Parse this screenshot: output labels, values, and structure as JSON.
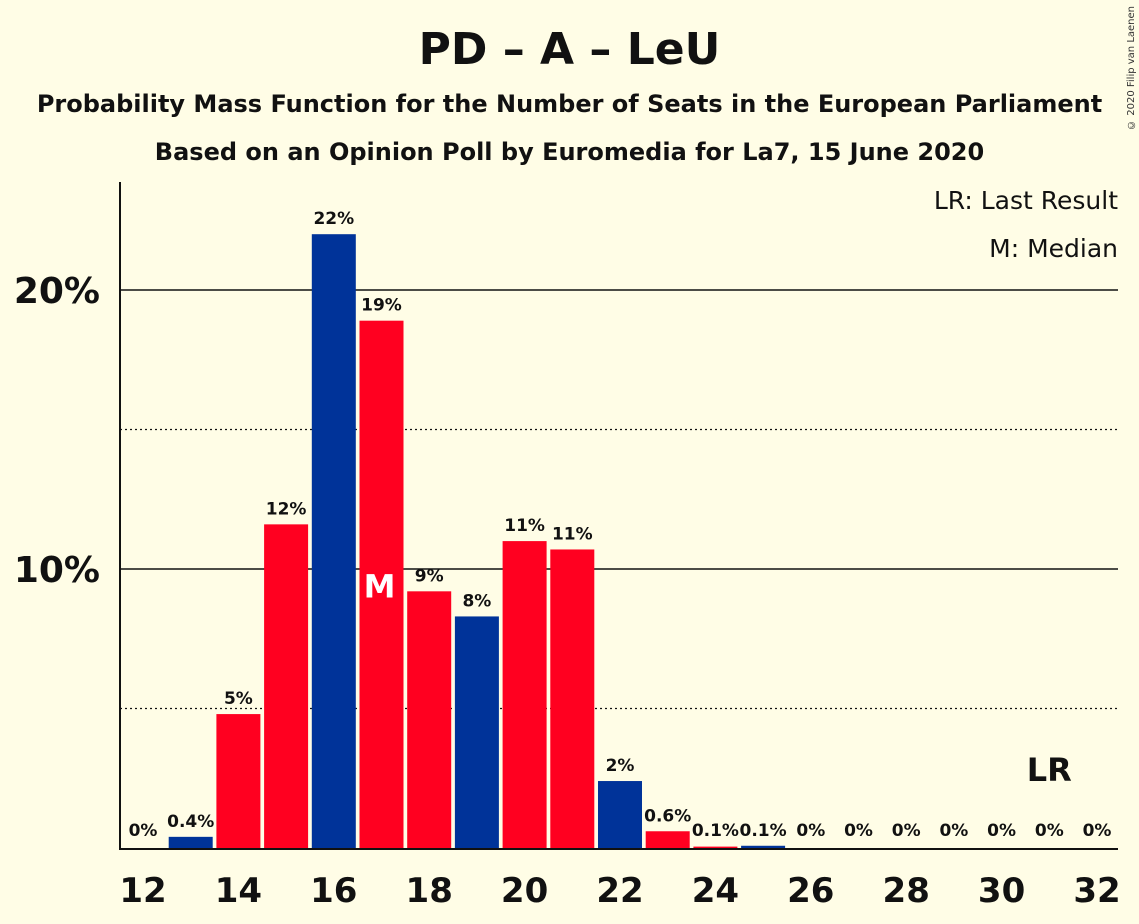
{
  "title": "PD – A – LeU",
  "subtitle": "Probability Mass Function for the Number of Seats in the European Parliament",
  "subtitle2": "Based on an Opinion Poll by Euromedia for La7, 15 June 2020",
  "copyright": "© 2020 Filip van Laenen",
  "legend": {
    "last_result": "LR: Last Result",
    "median": "M: Median"
  },
  "colors": {
    "red": "#ff0020",
    "blue": "#003399",
    "background": "#fffde6"
  },
  "chart_data": {
    "type": "bar",
    "x": [
      12,
      13,
      14,
      15,
      16,
      17,
      18,
      19,
      20,
      21,
      22,
      23,
      24,
      25,
      26,
      27,
      28,
      29,
      30,
      31,
      32
    ],
    "values": [
      0,
      0.4,
      4.8,
      11.6,
      22.0,
      18.9,
      9.2,
      8.3,
      11.0,
      10.7,
      2.4,
      0.6,
      0.05,
      0.08,
      0,
      0,
      0,
      0,
      0,
      0,
      0
    ],
    "labels": [
      "0%",
      "0.4%",
      "5%",
      "12%",
      "22%",
      "19%",
      "9%",
      "8%",
      "11%",
      "11%",
      "2%",
      "0.6%",
      "0.1%",
      "0.1%",
      "0%",
      "0%",
      "0%",
      "0%",
      "0%",
      "0%",
      "0%"
    ],
    "bar_colors": [
      "red",
      "blue",
      "red",
      "red",
      "blue",
      "red",
      "red",
      "blue",
      "red",
      "red",
      "blue",
      "red",
      "red",
      "blue",
      "red",
      "red",
      "red",
      "red",
      "red",
      "red",
      "red"
    ],
    "xtick_labels": [
      "12",
      "14",
      "16",
      "18",
      "20",
      "22",
      "24",
      "26",
      "28",
      "30",
      "32"
    ],
    "ytick_labels": [
      "10%",
      "20%"
    ],
    "ytick_values": [
      10,
      20
    ],
    "dotted_gridlines": [
      5,
      15
    ],
    "ylim": [
      0,
      24
    ],
    "median_seat": 17,
    "median_marker": "M",
    "last_result_seat": 31,
    "last_result_marker": "LR",
    "legend_position": "top-right"
  }
}
